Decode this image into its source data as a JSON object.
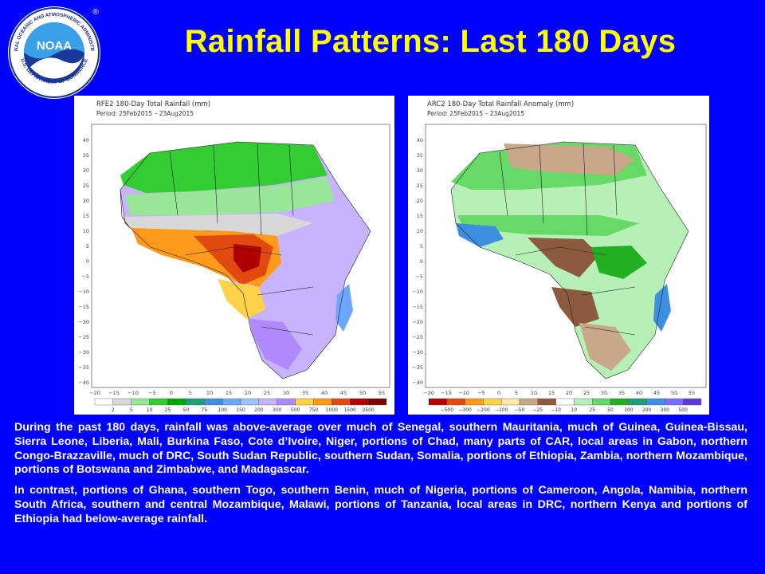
{
  "title": "Rainfall Patterns: Last 180 Days",
  "logo": {
    "center_text": "NOAA",
    "ring_text_top": "NATIONAL OCEANIC AND ATMOSPHERIC ADMINISTRATION",
    "ring_text_bottom": "U.S. DEPARTMENT OF COMMERCE",
    "registered": "®"
  },
  "maps": [
    {
      "title": "RFE2 180-Day Total Rainfall (mm)",
      "period": "Period: 25Feb2015 – 23Aug2015",
      "lat_ticks": [
        "40",
        "35",
        "30",
        "25",
        "20",
        "15",
        "10",
        "5",
        "0",
        "−5",
        "−10",
        "−15",
        "−20",
        "−25",
        "−30",
        "−35",
        "−40"
      ],
      "lon_ticks": [
        "−20",
        "−15",
        "−10",
        "−5",
        "0",
        "5",
        "10",
        "15",
        "20",
        "25",
        "30",
        "35",
        "40",
        "45",
        "50",
        "55"
      ],
      "legend_labels": [
        "2",
        "5",
        "10",
        "25",
        "50",
        "75",
        "100",
        "150",
        "200",
        "300",
        "500",
        "750",
        "1000",
        "1500",
        "2500"
      ],
      "legend_colors": [
        "#ffffff",
        "#d8d8d8",
        "#99e699",
        "#33cc33",
        "#00aa00",
        "#1f9e7c",
        "#3f8fe0",
        "#6ca6ff",
        "#a3c0ff",
        "#c7b3ff",
        "#b089ff",
        "#ffd24a",
        "#ff9a1a",
        "#e04a10",
        "#b00000",
        "#7a0000"
      ]
    },
    {
      "title": "ARC2 180-Day Total Rainfall Anomaly (mm)",
      "period": "Period: 25Feb2015 – 23Aug2015",
      "lat_ticks": [
        "40",
        "35",
        "30",
        "25",
        "20",
        "15",
        "10",
        "5",
        "0",
        "−5",
        "−10",
        "−15",
        "−20",
        "−25",
        "−30",
        "−35",
        "−40"
      ],
      "lon_ticks": [
        "−20",
        "−15",
        "−10",
        "−5",
        "0",
        "5",
        "10",
        "15",
        "20",
        "25",
        "30",
        "35",
        "40",
        "45",
        "50",
        "55"
      ],
      "legend_labels": [
        "−500",
        "−300",
        "−200",
        "−100",
        "−50",
        "−25",
        "−10",
        "10",
        "25",
        "50",
        "100",
        "200",
        "300",
        "500"
      ],
      "legend_colors": [
        "#b00000",
        "#e04a10",
        "#ff9a1a",
        "#ffd24a",
        "#ffe9a8",
        "#c9a88a",
        "#8c5a3c",
        "#ffffff",
        "#b7f0b7",
        "#66d966",
        "#22b022",
        "#1f9e7c",
        "#3f8fe0",
        "#7b6cff",
        "#5a3cd9"
      ]
    }
  ],
  "paragraphs": [
    "During the past 180 days, rainfall was above-average over much of Senegal, southern Mauritania, much of Guinea, Guinea-Bissau, Sierra Leone, Liberia, Mali, Burkina Faso, Cote d’Ivoire, Niger, portions of Chad, many parts of CAR, local areas in Gabon, northern Congo-Brazzaville, much of DRC, South Sudan Republic, southern Sudan, Somalia, portions of Ethiopia, Zambia, northern Mozambique, portions of Botswana and Zimbabwe, and Madagascar.",
    "In contrast, portions of Ghana, southern Togo, southern Benin, much of Nigeria, portions of Cameroon, Angola, Namibia, northern South Africa, southern and central Mozambique, Malawi, portions of Tanzania, local areas in DRC, northern Kenya and portions of Ethiopia had below-average rainfall."
  ]
}
